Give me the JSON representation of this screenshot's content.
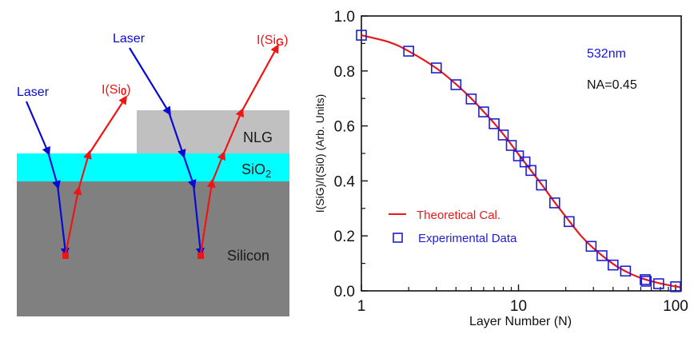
{
  "diagram": {
    "layers": [
      {
        "name": "Silicon",
        "label": "Silicon",
        "color": "#808080"
      },
      {
        "name": "SiO2",
        "label_main": "SiO",
        "label_sub": "2",
        "color": "#00FFFF"
      },
      {
        "name": "NLG",
        "label": "NLG",
        "color": "#C0C0C0"
      }
    ],
    "left_ray": {
      "incident_label": "Laser",
      "reflected_label_main": "I(Si",
      "reflected_label_sub": "0",
      "reflected_label_end": ")"
    },
    "right_ray": {
      "incident_label": "Laser",
      "reflected_label_main": "I(Si",
      "reflected_label_sub": "G",
      "reflected_label_end": ")"
    },
    "colors": {
      "incident": "#0A0AD2",
      "reflected": "#F01414",
      "text": "#1a1a1a"
    }
  },
  "chart_data": {
    "type": "line",
    "title": "",
    "xlabel": "Layer Number (N)",
    "ylabel": "I(SiG)/I(Si0)  (Arb. Units)",
    "xscale": "log",
    "xlim": [
      1,
      110
    ],
    "ylim": [
      0.0,
      1.0
    ],
    "xticks": [
      1,
      10,
      100
    ],
    "xtick_labels": [
      "1",
      "10",
      "100"
    ],
    "yticks": [
      0.0,
      0.2,
      0.4,
      0.6,
      0.8,
      1.0
    ],
    "ytick_labels": [
      "0.0",
      "0.2",
      "0.4",
      "0.6",
      "0.8",
      "1.0"
    ],
    "grid": false,
    "legend_position": "lower-left",
    "annotations": [
      {
        "text": "532nm",
        "color": "#1414DC"
      },
      {
        "text": "NA=0.45",
        "color": "#111111"
      }
    ],
    "series": [
      {
        "name": "Theoretical Cal.",
        "kind": "line",
        "color": "#E81818",
        "x": [
          1,
          1.5,
          2,
          3,
          4,
          5,
          6,
          7,
          8,
          9,
          10,
          12,
          14,
          17,
          20,
          25,
          30,
          40,
          50,
          60,
          70,
          80,
          90,
          100,
          108
        ],
        "y": [
          0.93,
          0.905,
          0.872,
          0.81,
          0.752,
          0.7,
          0.652,
          0.61,
          0.57,
          0.532,
          0.497,
          0.438,
          0.388,
          0.322,
          0.27,
          0.2,
          0.155,
          0.098,
          0.066,
          0.047,
          0.035,
          0.027,
          0.021,
          0.016,
          0.013
        ]
      },
      {
        "name": "Experimental Data",
        "kind": "scatter",
        "marker": "open-square",
        "color": "#1E1ED2",
        "x": [
          1,
          2,
          3,
          4,
          5,
          6,
          7,
          8,
          9,
          10,
          11,
          12,
          14,
          17,
          21,
          29,
          34,
          40,
          48,
          64,
          65,
          78,
          100
        ],
        "y": [
          0.93,
          0.872,
          0.811,
          0.75,
          0.698,
          0.651,
          0.608,
          0.567,
          0.529,
          0.491,
          0.469,
          0.438,
          0.385,
          0.32,
          0.252,
          0.162,
          0.128,
          0.094,
          0.072,
          0.041,
          0.035,
          0.026,
          0.015
        ]
      }
    ]
  }
}
